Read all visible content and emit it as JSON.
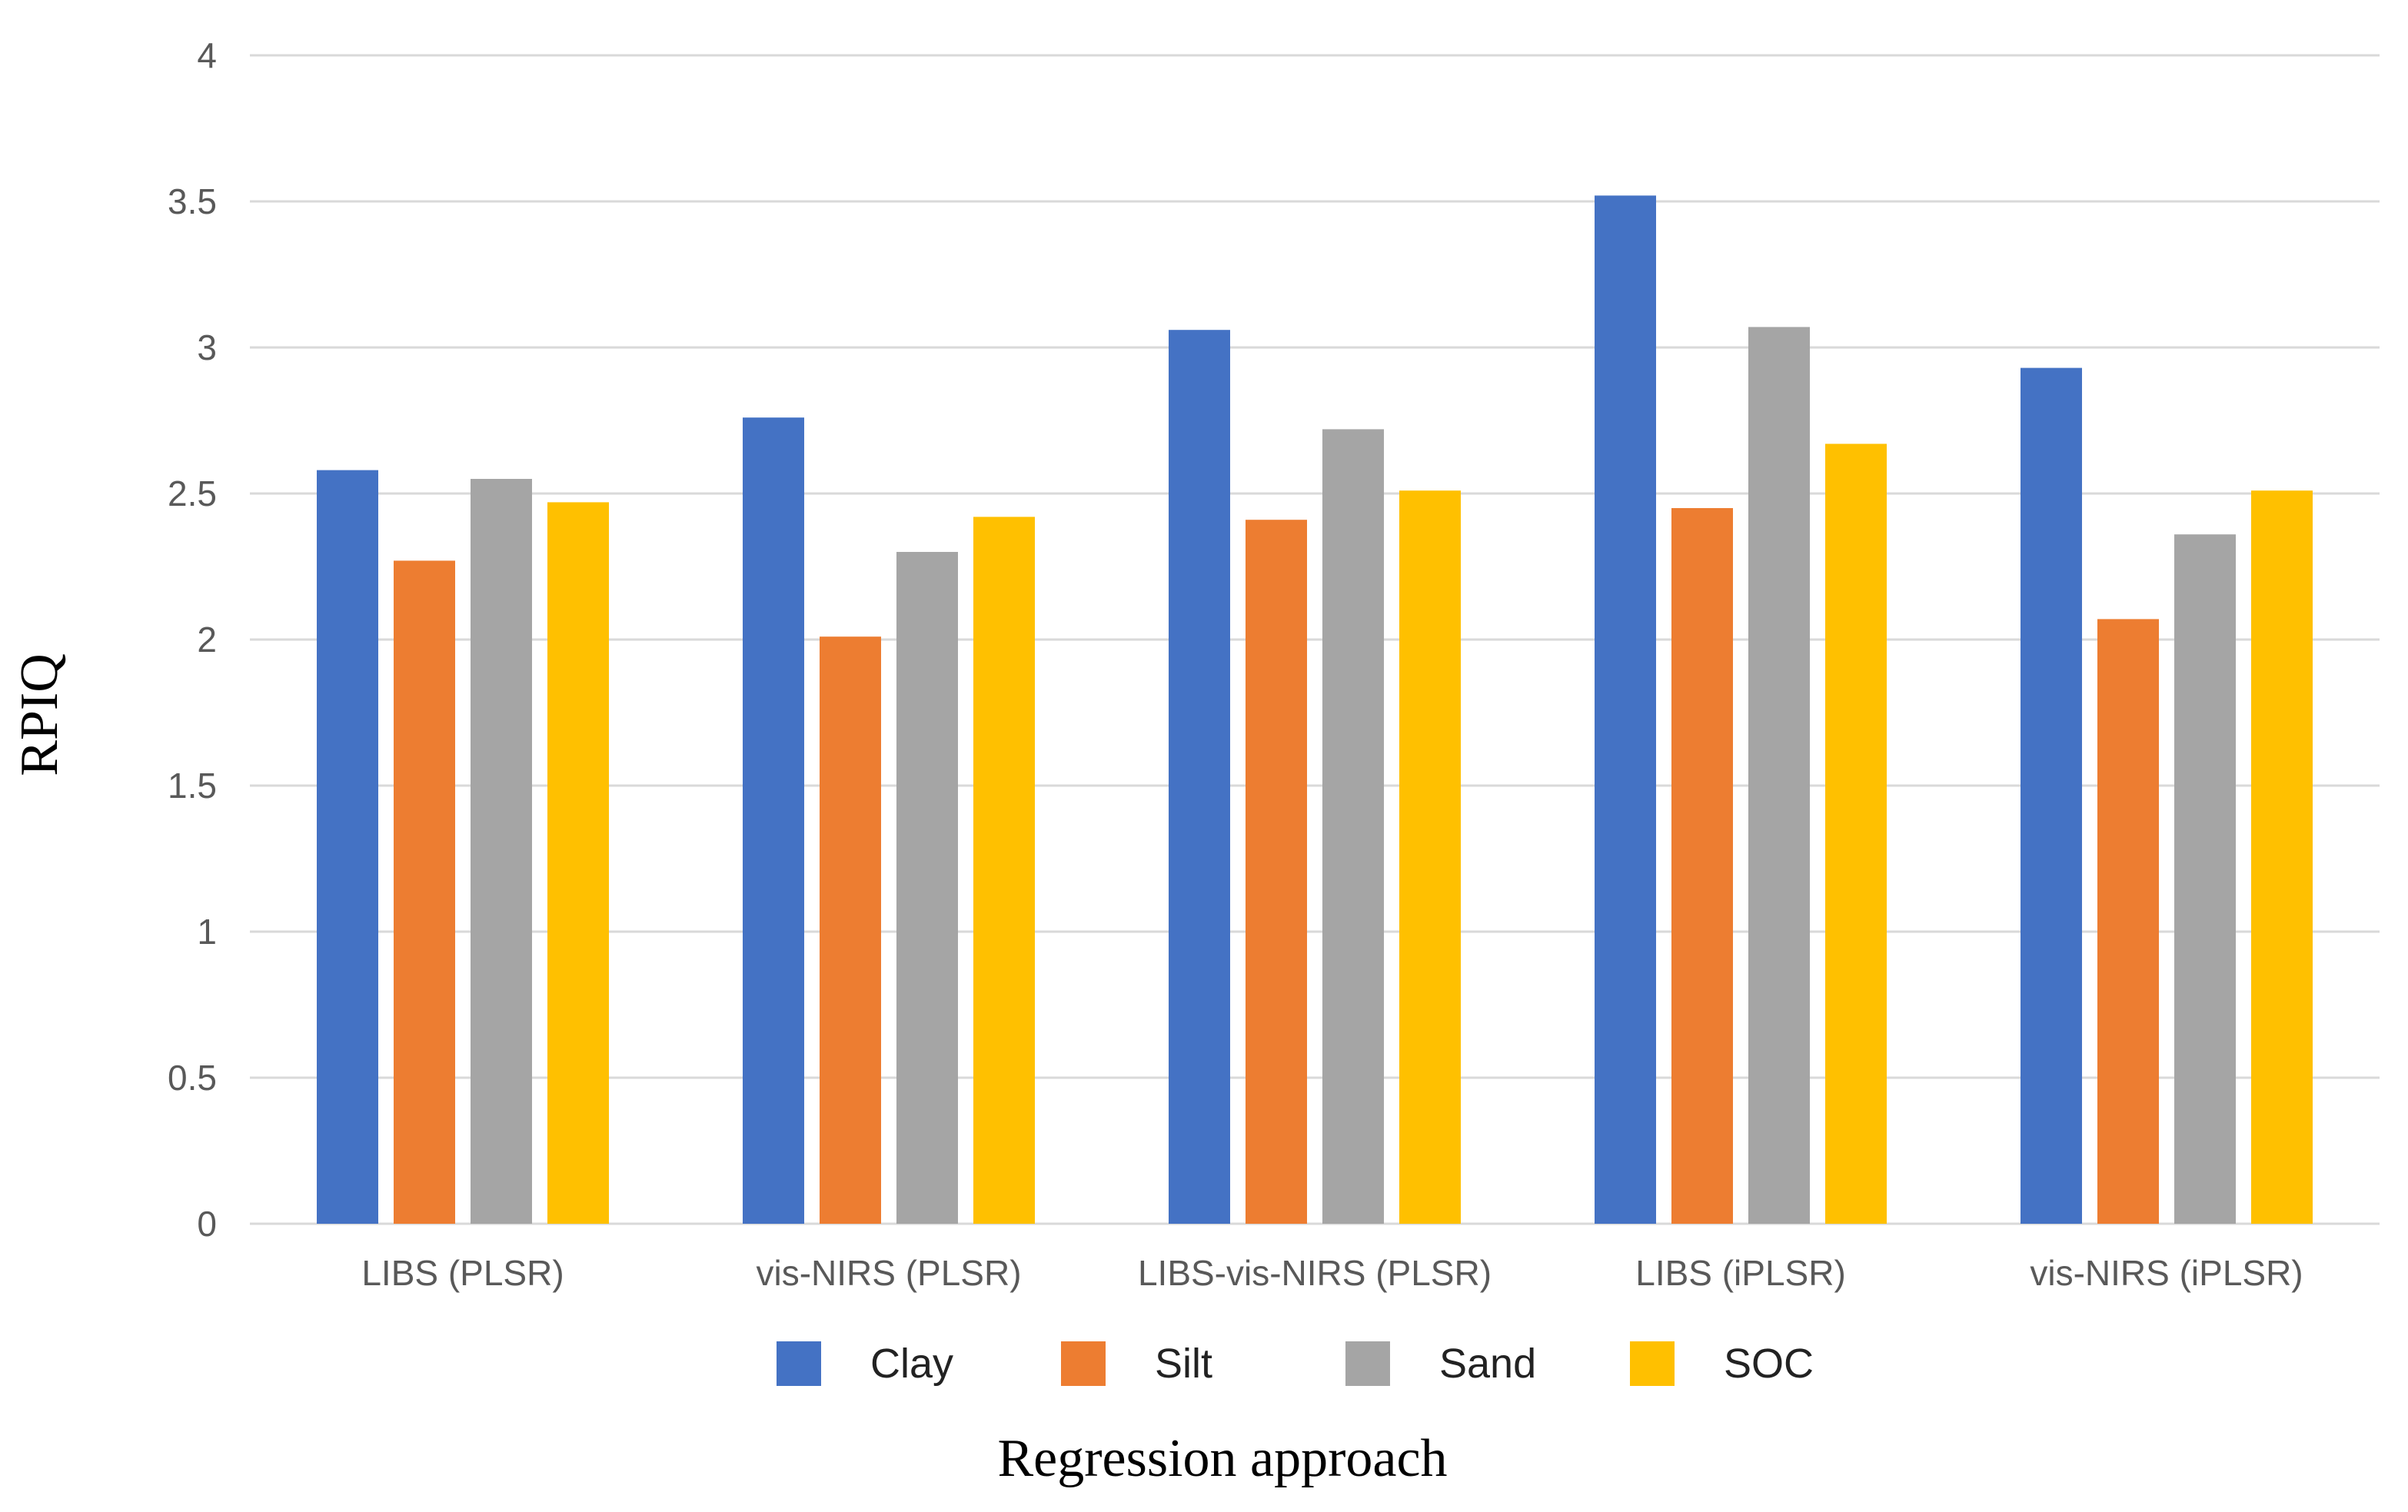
{
  "chart_data": {
    "type": "bar",
    "title": "",
    "xlabel": "Regression approach",
    "ylabel": "RPIQ",
    "ylim": [
      0,
      4
    ],
    "yticks": [
      "0",
      "0.5",
      "1",
      "1.5",
      "2",
      "2.5",
      "3",
      "3.5",
      "4"
    ],
    "ytick_values": [
      0,
      0.5,
      1,
      1.5,
      2,
      2.5,
      3,
      3.5,
      4
    ],
    "grid": true,
    "legend_position": "bottom",
    "categories": [
      "LIBS (PLSR)",
      "vis-NIRS (PLSR)",
      "LIBS-vis-NIRS (PLSR)",
      "LIBS (iPLSR)",
      "vis-NIRS (iPLSR)"
    ],
    "series": [
      {
        "name": "Clay",
        "color": "#4472C4",
        "values": [
          2.58,
          2.76,
          3.06,
          3.52,
          2.93
        ]
      },
      {
        "name": "Silt",
        "color": "#ED7D31",
        "values": [
          2.27,
          2.01,
          2.41,
          2.45,
          2.07
        ]
      },
      {
        "name": "Sand",
        "color": "#A5A5A5",
        "values": [
          2.55,
          2.3,
          2.72,
          3.07,
          2.36
        ]
      },
      {
        "name": "SOC",
        "color": "#FFC000",
        "values": [
          2.47,
          2.42,
          2.51,
          2.67,
          2.51
        ]
      }
    ]
  }
}
